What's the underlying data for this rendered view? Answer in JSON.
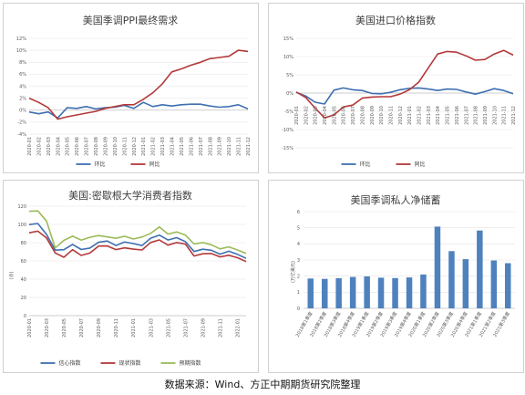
{
  "source_note": "数据来源：Wind、方正中期期货研究院整理",
  "colors": {
    "blue": "#3e6fb0",
    "red": "#b3393a",
    "green": "#9bbb59",
    "grid": "#e4e4e4",
    "axis": "#bfbfbf"
  },
  "chart_data": [
    {
      "type": "line",
      "title": "美国季调PPI最终需求",
      "x": [
        "2020-01",
        "2020-02",
        "2020-03",
        "2020-04",
        "2020-05",
        "2020-06",
        "2020-07",
        "2020-08",
        "2020-09",
        "2020-10",
        "2020-11",
        "2020-12",
        "2021-01",
        "2021-02",
        "2021-03",
        "2021-04",
        "2021-05",
        "2021-06",
        "2021-07",
        "2021-08",
        "2021-09",
        "2021-10",
        "2021-11",
        "2021-12"
      ],
      "ylim": [
        -4,
        12
      ],
      "yticks": [
        -4,
        -2,
        0,
        2,
        4,
        6,
        8,
        10,
        12
      ],
      "ytick_labels": [
        "-4%",
        "-2%",
        "0%",
        "2%",
        "4%",
        "6%",
        "8%",
        "10%",
        "12%"
      ],
      "series": [
        {
          "name": "环比",
          "color": "#3e6fb0",
          "values": [
            -0.3,
            -0.6,
            -0.3,
            -1.3,
            0.4,
            0.3,
            0.6,
            0.2,
            0.4,
            0.5,
            0.8,
            0.3,
            1.3,
            0.6,
            0.9,
            0.7,
            0.9,
            1.0,
            1.0,
            0.7,
            0.5,
            0.6,
            0.9,
            0.2
          ]
        },
        {
          "name": "同比",
          "color": "#b3393a",
          "values": [
            2.0,
            1.3,
            0.4,
            -1.5,
            -1.1,
            -0.8,
            -0.5,
            -0.2,
            0.3,
            0.6,
            0.9,
            0.9,
            1.8,
            2.9,
            4.4,
            6.4,
            6.9,
            7.5,
            8.0,
            8.6,
            8.8,
            9.0,
            10.0,
            9.8
          ]
        }
      ]
    },
    {
      "type": "line",
      "title": "美国进口价格指数",
      "x": [
        "2020-01",
        "2020-02",
        "2020-03",
        "2020-04",
        "2020-05",
        "2020-06",
        "2020-07",
        "2020-08",
        "2020-09",
        "2020-10",
        "2020-11",
        "2020-12",
        "2021-01",
        "2021-02",
        "2021-03",
        "2021-04",
        "2021-05",
        "2021-06",
        "2021-07",
        "2021-08",
        "2021-09",
        "2021-10",
        "2021-11",
        "2021-12"
      ],
      "ylim": [
        -15,
        15
      ],
      "yticks": [
        -15,
        -10,
        -5,
        0,
        5,
        10,
        15
      ],
      "ytick_labels": [
        "-15%",
        "-10%",
        "-5%",
        "0%",
        "5%",
        "10%",
        "15%"
      ],
      "series": [
        {
          "name": "环比",
          "color": "#3e6fb0",
          "values": [
            0.2,
            -0.8,
            -2.5,
            -3.0,
            0.8,
            1.4,
            0.9,
            0.7,
            -0.1,
            -0.2,
            0.2,
            0.9,
            1.3,
            1.4,
            1.1,
            0.7,
            1.1,
            1.0,
            0.3,
            -0.3,
            0.4,
            1.2,
            0.7,
            -0.2
          ]
        },
        {
          "name": "同比",
          "color": "#b3393a",
          "values": [
            0.3,
            -1.2,
            -4.1,
            -6.8,
            -6.0,
            -3.8,
            -3.3,
            -1.4,
            -1.1,
            -1.0,
            -1.0,
            -0.3,
            0.9,
            3.0,
            6.9,
            10.7,
            11.4,
            11.2,
            10.2,
            9.0,
            9.2,
            10.7,
            11.7,
            10.4
          ]
        }
      ]
    },
    {
      "type": "line",
      "title": "美国:密歇根大学消费者指数",
      "x": [
        "2020-01",
        "2020-02",
        "2020-03",
        "2020-04",
        "2020-05",
        "2020-06",
        "2020-07",
        "2020-08",
        "2020-09",
        "2020-10",
        "2020-11",
        "2020-12",
        "2021-01",
        "2021-02",
        "2021-03",
        "2021-04",
        "2021-05",
        "2021-06",
        "2021-07",
        "2021-08",
        "2021-09",
        "2021-10",
        "2021-11",
        "2021-12",
        "2022-01",
        "2022-02"
      ],
      "xtick_labels": [
        "2020-01",
        "2020-03",
        "2020-05",
        "2020-07",
        "2020-09",
        "2020-11",
        "2021-01",
        "2021-03",
        "2021-05",
        "2021-07",
        "2021-09",
        "2021-11",
        "2022-01"
      ],
      "ylim": [
        0,
        120
      ],
      "yticks": [
        0,
        20,
        40,
        60,
        80,
        100,
        120
      ],
      "ytick_labels": [
        "0",
        "20",
        "40",
        "60",
        "80",
        "100",
        "120"
      ],
      "ylabel": "(点)",
      "series": [
        {
          "name": "信心指数",
          "color": "#3e6fb0",
          "values": [
            99.8,
            101.0,
            89.1,
            71.8,
            72.3,
            78.1,
            72.5,
            74.1,
            80.4,
            81.8,
            76.9,
            80.7,
            79.0,
            76.8,
            84.9,
            88.3,
            82.9,
            85.5,
            81.2,
            70.3,
            72.8,
            71.7,
            67.4,
            70.6,
            67.2,
            62.8
          ]
        },
        {
          "name": "现状指数",
          "color": "#b3393a",
          "values": [
            90.8,
            92.6,
            85.2,
            68.7,
            64.0,
            72.3,
            66.0,
            68.6,
            76.3,
            76.4,
            72.4,
            74.3,
            72.9,
            72.0,
            80.2,
            83.0,
            77.3,
            80.1,
            78.5,
            65.4,
            67.8,
            68.1,
            64.4,
            66.2,
            63.5,
            59.3
          ]
        },
        {
          "name": "预期指数",
          "color": "#9bbb59",
          "values": [
            114.4,
            114.8,
            103.7,
            74.3,
            82.5,
            87.1,
            82.8,
            85.9,
            87.8,
            86.3,
            84.8,
            87.0,
            84.0,
            86.2,
            90.2,
            97.2,
            89.4,
            91.7,
            88.4,
            78.5,
            80.1,
            77.7,
            73.2,
            75.4,
            72.0,
            68.2
          ]
        }
      ]
    },
    {
      "type": "bar",
      "title": "美国季调私人净储蓄",
      "categories": [
        "2018第1季度",
        "2018第2季度",
        "2018第3季度",
        "2018第4季度",
        "2019第1季度",
        "2019第2季度",
        "2019第3季度",
        "2019第4季度",
        "2020第1季度",
        "2020第2季度",
        "2020第3季度",
        "2020第4季度",
        "2021第1季度",
        "2021第2季度",
        "2021第3季度"
      ],
      "values": [
        1.85,
        1.83,
        1.87,
        1.95,
        1.98,
        1.9,
        1.88,
        1.92,
        2.1,
        5.07,
        3.55,
        3.05,
        4.83,
        2.97,
        2.8
      ],
      "ylim": [
        0,
        6
      ],
      "yticks": [
        0,
        1,
        2,
        3,
        4,
        5,
        6
      ],
      "ytick_labels": [
        "0",
        "1",
        "2",
        "3",
        "4",
        "5",
        "6"
      ],
      "ylabel": "(万亿美元)",
      "bar_color": "#4f81bd"
    }
  ]
}
